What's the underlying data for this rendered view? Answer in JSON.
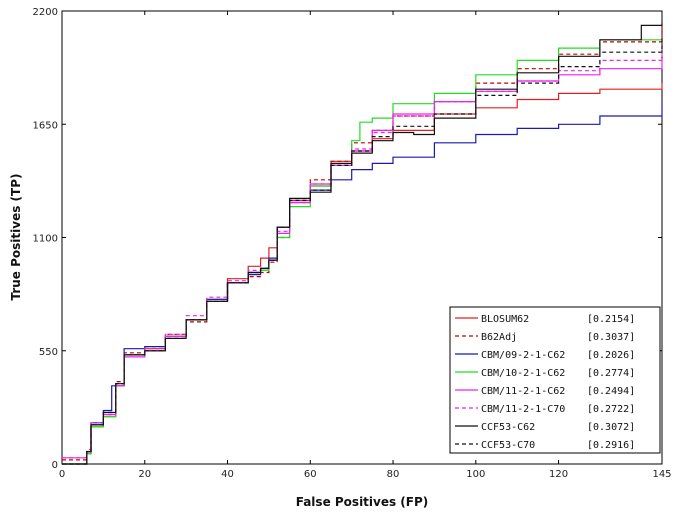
{
  "chart_data": {
    "type": "line",
    "title": "",
    "xlabel": "False Positives (FP)",
    "ylabel": "True Positives (TP)",
    "xlim": [
      0,
      145
    ],
    "ylim": [
      0,
      2200
    ],
    "x_ticks": [
      0,
      20,
      40,
      60,
      80,
      100,
      120,
      145
    ],
    "y_ticks": [
      0,
      550,
      1100,
      1650,
      2200
    ],
    "legend": "bottom-right",
    "grid": false,
    "series": [
      {
        "name": "BLOSUM62",
        "score": "[0.2154]",
        "color": "#e02020",
        "dash": "solid",
        "x": [
          0,
          6,
          7,
          10,
          13,
          15,
          20,
          25,
          30,
          35,
          40,
          45,
          48,
          50,
          52,
          55,
          60,
          65,
          70,
          75,
          80,
          90,
          100,
          110,
          120,
          130,
          145
        ],
        "y": [
          0,
          60,
          180,
          230,
          380,
          530,
          560,
          620,
          700,
          800,
          900,
          960,
          1000,
          1050,
          1150,
          1280,
          1350,
          1470,
          1520,
          1580,
          1620,
          1700,
          1730,
          1770,
          1800,
          1820,
          1850
        ]
      },
      {
        "name": "B62Adj",
        "score": "[0.3037]",
        "color": "#c00000",
        "dash": "dashed",
        "x": [
          0,
          6,
          7,
          10,
          13,
          15,
          20,
          25,
          30,
          35,
          40,
          45,
          48,
          50,
          52,
          55,
          60,
          65,
          70,
          75,
          80,
          90,
          100,
          110,
          120,
          130,
          145
        ],
        "y": [
          20,
          60,
          190,
          240,
          400,
          540,
          570,
          630,
          690,
          790,
          880,
          910,
          930,
          980,
          1100,
          1270,
          1380,
          1470,
          1560,
          1620,
          1690,
          1760,
          1850,
          1920,
          1990,
          2050,
          2140
        ]
      },
      {
        "name": "CBM/09-2-1-C62",
        "score": "[0.2026]",
        "color": "#1a1ab0",
        "dash": "solid",
        "x": [
          0,
          6,
          7,
          10,
          12,
          15,
          20,
          25,
          30,
          35,
          40,
          45,
          48,
          50,
          52,
          55,
          60,
          65,
          70,
          75,
          80,
          90,
          100,
          110,
          120,
          130,
          145
        ],
        "y": [
          0,
          50,
          200,
          260,
          380,
          560,
          570,
          620,
          700,
          800,
          880,
          920,
          940,
          1000,
          1150,
          1270,
          1330,
          1380,
          1430,
          1460,
          1490,
          1560,
          1600,
          1630,
          1650,
          1690,
          1750
        ]
      },
      {
        "name": "CBM/10-2-1-C62",
        "score": "[0.2774]",
        "color": "#22dd22",
        "dash": "solid",
        "x": [
          0,
          6,
          7,
          10,
          13,
          15,
          20,
          25,
          30,
          35,
          40,
          45,
          48,
          50,
          52,
          55,
          60,
          65,
          70,
          72,
          75,
          80,
          90,
          100,
          110,
          120,
          130,
          145
        ],
        "y": [
          0,
          50,
          180,
          230,
          380,
          530,
          550,
          620,
          700,
          790,
          880,
          930,
          940,
          990,
          1100,
          1250,
          1350,
          1450,
          1570,
          1660,
          1680,
          1750,
          1800,
          1890,
          1960,
          2020,
          2060,
          2070
        ]
      },
      {
        "name": "CBM/11-2-1-C62",
        "score": "[0.2494]",
        "color": "#ee22ee",
        "dash": "solid",
        "x": [
          0,
          6,
          7,
          10,
          13,
          15,
          20,
          25,
          30,
          35,
          40,
          45,
          48,
          50,
          52,
          55,
          60,
          65,
          70,
          75,
          80,
          90,
          100,
          110,
          120,
          130,
          145
        ],
        "y": [
          30,
          60,
          190,
          240,
          380,
          520,
          550,
          620,
          700,
          790,
          880,
          930,
          950,
          990,
          1120,
          1270,
          1360,
          1450,
          1520,
          1620,
          1700,
          1760,
          1810,
          1860,
          1890,
          1920,
          1970
        ]
      },
      {
        "name": "CBM/11-2-1-C70",
        "score": "[0.2722]",
        "color": "#ee22ee",
        "dash": "dashed",
        "x": [
          0,
          6,
          7,
          10,
          13,
          15,
          20,
          25,
          30,
          35,
          40,
          45,
          48,
          50,
          52,
          55,
          60,
          65,
          70,
          75,
          80,
          90,
          100,
          110,
          120,
          130,
          145
        ],
        "y": [
          30,
          70,
          200,
          250,
          390,
          530,
          560,
          630,
          720,
          810,
          890,
          940,
          950,
          990,
          1130,
          1280,
          1360,
          1450,
          1530,
          1610,
          1690,
          1760,
          1810,
          1860,
          1910,
          1960,
          2030
        ]
      },
      {
        "name": "CCF53-C62",
        "score": "[0.3072]",
        "color": "#111111",
        "dash": "solid",
        "x": [
          0,
          6,
          7,
          10,
          13,
          15,
          20,
          25,
          30,
          35,
          40,
          45,
          48,
          50,
          52,
          55,
          60,
          65,
          70,
          75,
          80,
          85,
          90,
          100,
          110,
          120,
          130,
          140,
          145
        ],
        "y": [
          0,
          60,
          190,
          250,
          390,
          530,
          550,
          610,
          700,
          790,
          880,
          930,
          950,
          990,
          1150,
          1290,
          1320,
          1460,
          1510,
          1570,
          1610,
          1600,
          1680,
          1820,
          1900,
          1980,
          2060,
          2130,
          2140
        ]
      },
      {
        "name": "CCF53-C70",
        "score": "[0.2916]",
        "color": "#111111",
        "dash": "dashed",
        "x": [
          0,
          6,
          7,
          10,
          13,
          15,
          20,
          25,
          30,
          35,
          40,
          45,
          48,
          50,
          52,
          55,
          60,
          65,
          70,
          75,
          80,
          90,
          100,
          110,
          120,
          130,
          145
        ],
        "y": [
          0,
          60,
          190,
          250,
          390,
          530,
          550,
          610,
          700,
          790,
          880,
          930,
          950,
          990,
          1150,
          1280,
          1330,
          1450,
          1520,
          1590,
          1640,
          1700,
          1790,
          1850,
          1930,
          2000,
          2070
        ]
      }
    ]
  }
}
